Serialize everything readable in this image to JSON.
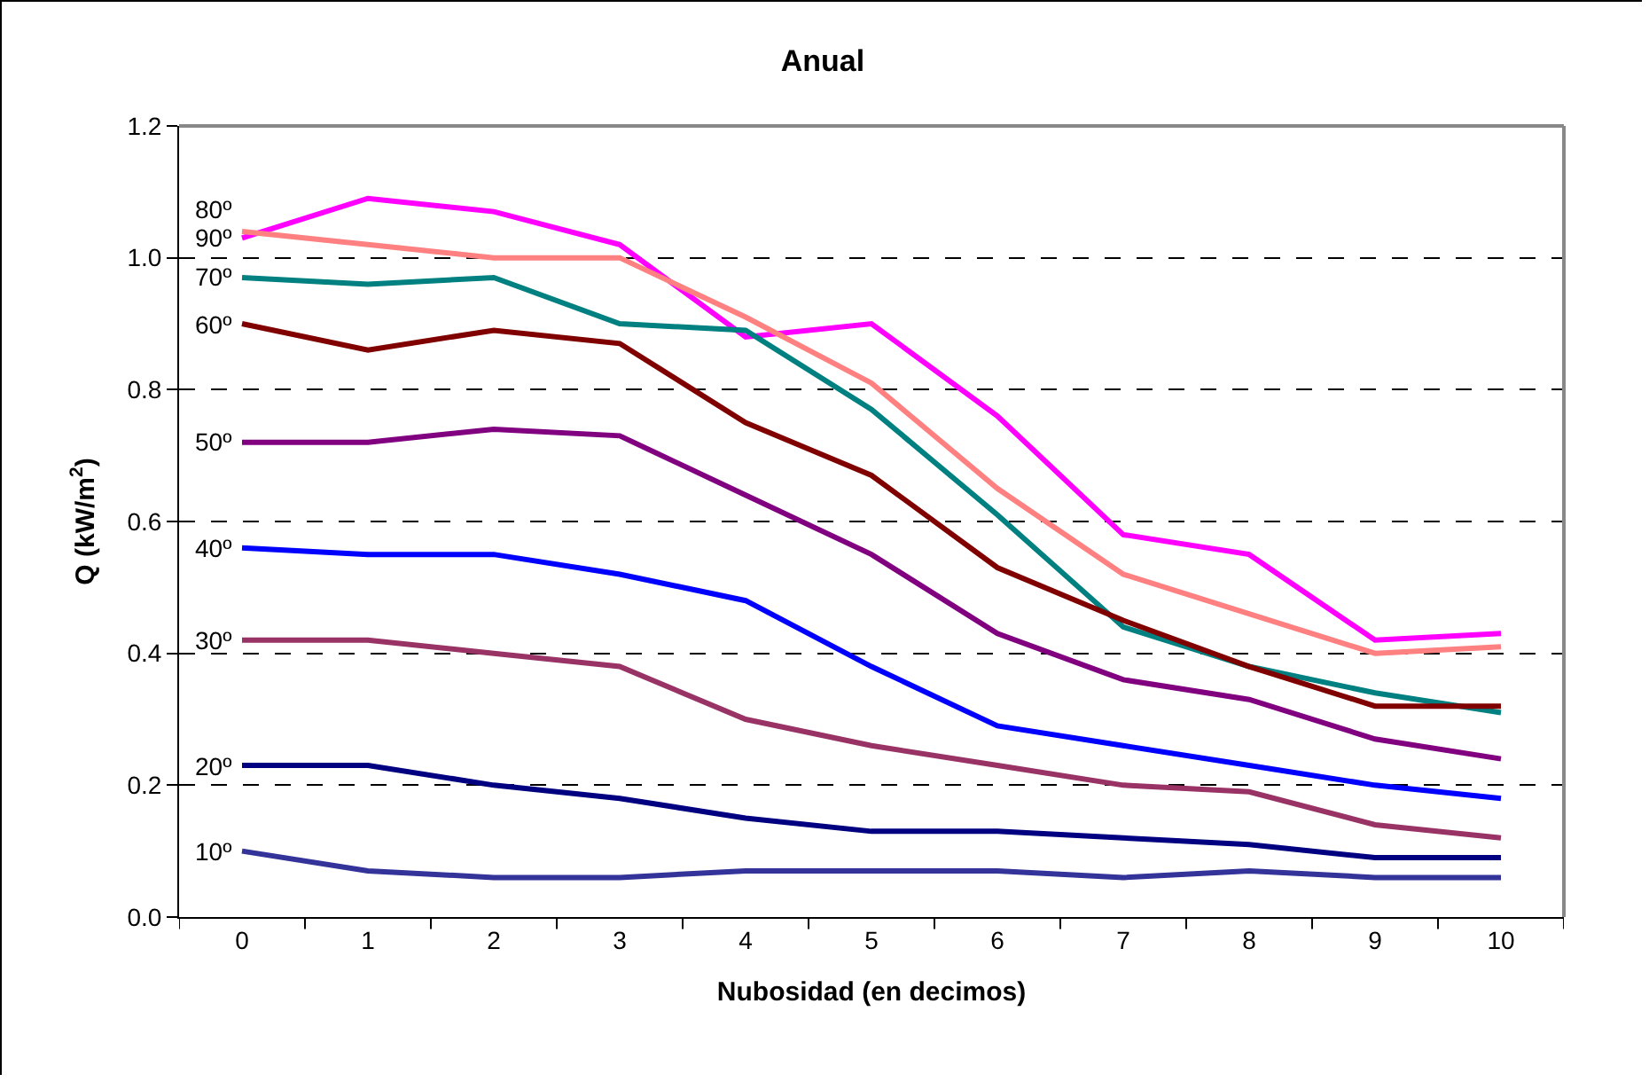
{
  "chart_data": {
    "type": "line",
    "title": "Anual",
    "xlabel": "Nubosidad (en decimos)",
    "ylabel": "Q (kW/m$^{2}$)",
    "categories": [
      "0",
      "1",
      "2",
      "3",
      "4",
      "5",
      "6",
      "7",
      "8",
      "9",
      "10"
    ],
    "series": [
      {
        "name": "90º",
        "color": "#ff00ff",
        "values": [
          1.03,
          1.09,
          1.07,
          1.02,
          0.88,
          0.9,
          0.76,
          0.58,
          0.55,
          0.42,
          0.43
        ]
      },
      {
        "name": "80º",
        "color": "#ff8080",
        "values": [
          1.04,
          1.02,
          1.0,
          1.0,
          0.91,
          0.81,
          0.65,
          0.52,
          0.46,
          0.4,
          0.41
        ]
      },
      {
        "name": "70º",
        "color": "#008080",
        "values": [
          0.97,
          0.96,
          0.97,
          0.9,
          0.89,
          0.77,
          0.61,
          0.44,
          0.38,
          0.34,
          0.31
        ]
      },
      {
        "name": "60º",
        "color": "#800000",
        "values": [
          0.9,
          0.86,
          0.89,
          0.87,
          0.75,
          0.67,
          0.53,
          0.45,
          0.38,
          0.32,
          0.32
        ]
      },
      {
        "name": "50º",
        "color": "#800080",
        "values": [
          0.72,
          0.72,
          0.74,
          0.73,
          0.64,
          0.55,
          0.43,
          0.36,
          0.33,
          0.27,
          0.24
        ]
      },
      {
        "name": "40º",
        "color": "#0000ff",
        "values": [
          0.56,
          0.55,
          0.55,
          0.52,
          0.48,
          0.38,
          0.29,
          0.26,
          0.23,
          0.2,
          0.18
        ]
      },
      {
        "name": "30º",
        "color": "#993366",
        "values": [
          0.42,
          0.42,
          0.4,
          0.38,
          0.3,
          0.26,
          0.23,
          0.2,
          0.19,
          0.14,
          0.12
        ]
      },
      {
        "name": "20º",
        "color": "#000080",
        "values": [
          0.23,
          0.23,
          0.2,
          0.18,
          0.15,
          0.13,
          0.13,
          0.12,
          0.11,
          0.09,
          0.09
        ]
      },
      {
        "name": "10º",
        "color": "#333399",
        "values": [
          0.1,
          0.07,
          0.06,
          0.06,
          0.07,
          0.07,
          0.07,
          0.06,
          0.07,
          0.06,
          0.06
        ]
      }
    ],
    "ylim": [
      0,
      1.2
    ],
    "yticks": [
      {
        "value": 0,
        "label": "0.0"
      },
      {
        "value": 0.2,
        "label": "0.2"
      },
      {
        "value": 0.4,
        "label": "0.4"
      },
      {
        "value": 0.6,
        "label": "0.6"
      },
      {
        "value": 0.8,
        "label": "0.8"
      },
      {
        "value": 1,
        "label": "1.0"
      },
      {
        "value": 1.2,
        "label": "1.2"
      }
    ],
    "grid": "y",
    "legend": false,
    "marker": "none",
    "line_style": "solid"
  }
}
